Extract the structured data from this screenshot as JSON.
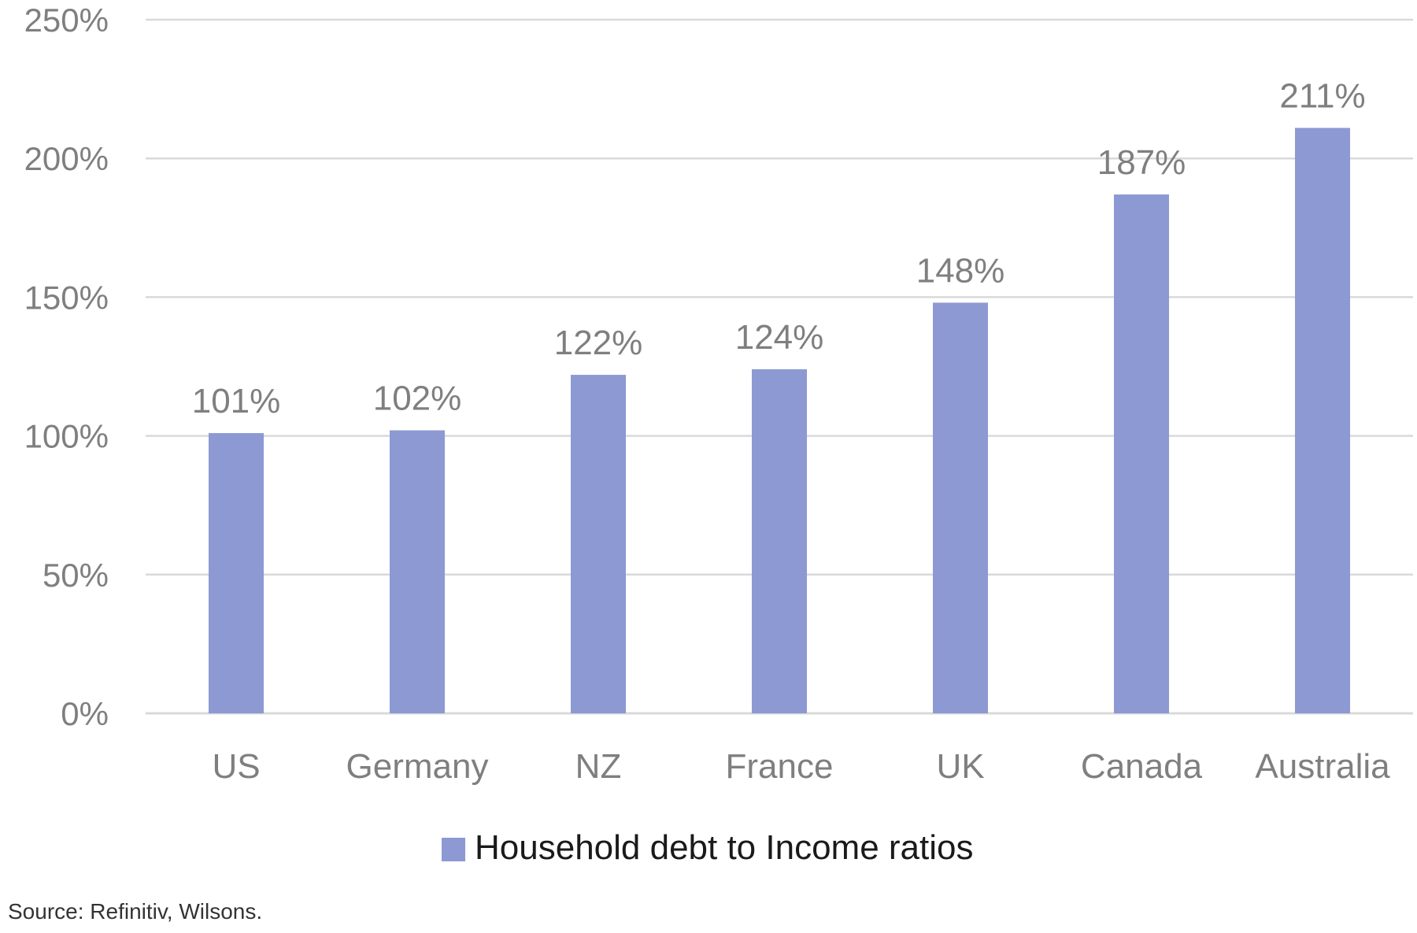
{
  "chart_data": {
    "type": "bar",
    "categories": [
      "US",
      "Germany",
      "NZ",
      "France",
      "UK",
      "Canada",
      "Australia"
    ],
    "series": [
      {
        "name": "Household debt to Income ratios",
        "values": [
          101,
          102,
          122,
          124,
          148,
          187,
          211
        ],
        "labels": [
          "101%",
          "102%",
          "122%",
          "124%",
          "148%",
          "187%",
          "211%"
        ],
        "color": "#8c99d3"
      }
    ],
    "ylim": [
      0,
      250
    ],
    "yticks": [
      0,
      50,
      100,
      150,
      200,
      250
    ],
    "ytick_labels": [
      "0%",
      "50%",
      "100%",
      "150%",
      "200%",
      "250%"
    ],
    "grid": true,
    "legend_position": "bottom",
    "gridline_color": "#d9d9d9"
  },
  "source_note": "Source: Refinitiv, Wilsons."
}
